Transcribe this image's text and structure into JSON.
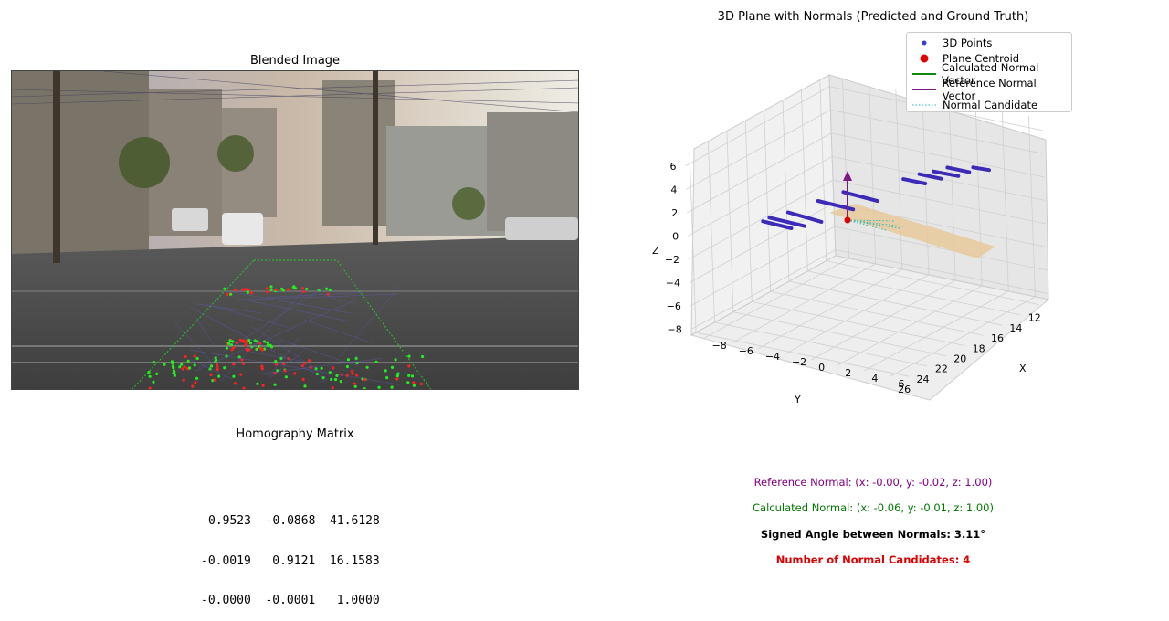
{
  "left_panel": {
    "title": "Blended Image",
    "homography_title": "Homography Matrix",
    "homography_rows": [
      "0.9523  -0.0868  41.6128",
      "-0.0019   0.9121  16.1583",
      "-0.0000  -0.0001   1.0000"
    ]
  },
  "right_panel": {
    "title": "3D Plane with Normals (Predicted and Ground Truth)",
    "legend": [
      {
        "label": "3D Points",
        "color": "#3b3bd8",
        "kind": "dot"
      },
      {
        "label": "Plane Centroid",
        "color": "#e00000",
        "kind": "big-dot"
      },
      {
        "label": "Calculated Normal Vector",
        "color": "#118811",
        "kind": "line"
      },
      {
        "label": "Reference Normal Vector",
        "color": "#7b1a82",
        "kind": "line"
      },
      {
        "label": "Normal Candidate",
        "color": "#29b8b8",
        "kind": "dotted"
      }
    ],
    "info": {
      "reference": "Reference Normal: (x: -0.00, y: -0.02, z: 1.00)",
      "calculated": "Calculated Normal: (x: -0.06, y: -0.01, z: 1.00)",
      "angle": "Signed Angle between Normals: 3.11°",
      "candidates": "Number of Normal Candidates: 4"
    },
    "colors": {
      "reference": "#800080",
      "calculated": "#007700",
      "candidates": "#dd0000"
    }
  },
  "chart_data": {
    "type": "scatter",
    "title": "3D Plane with Normals (Predicted and Ground Truth)",
    "xlabel": "X",
    "ylabel": "Y",
    "zlabel": "Z",
    "x_ticks": [
      -8,
      -6,
      -4,
      -2,
      0,
      2,
      4,
      6
    ],
    "y_ticks": [
      12,
      14,
      16,
      18,
      20,
      22,
      24,
      26
    ],
    "z_ticks": [
      -8,
      -6,
      -4,
      -2,
      0,
      2,
      4,
      6
    ],
    "xlim": [
      -9,
      7
    ],
    "ylim": [
      11,
      26.5
    ],
    "zlim": [
      -8.5,
      7
    ],
    "grid": true,
    "legend_position": "top-right",
    "plane": {
      "x_range": [
        -4,
        4
      ],
      "y_range": [
        12,
        26
      ],
      "z": 2
    },
    "centroid": {
      "x": 0,
      "y": 15,
      "z": 2.1
    },
    "reference_normal": {
      "x": -0.0,
      "y": -0.02,
      "z": 1.0
    },
    "calculated_normal": {
      "x": -0.06,
      "y": -0.01,
      "z": 1.0
    },
    "num_normal_candidates": 4,
    "point_strokes": [
      {
        "x": [
          2.5,
          4.0
        ],
        "y": [
          12.2,
          12.6
        ],
        "z": [
          2.3,
          2.6
        ]
      },
      {
        "x": [
          1.0,
          3.0
        ],
        "y": [
          12.8,
          13.3
        ],
        "z": [
          2.2,
          2.5
        ]
      },
      {
        "x": [
          0.5,
          2.8
        ],
        "y": [
          13.6,
          14.2
        ],
        "z": [
          2.1,
          2.5
        ]
      },
      {
        "x": [
          0.0,
          2.0
        ],
        "y": [
          14.4,
          14.9
        ],
        "z": [
          2.1,
          2.4
        ]
      },
      {
        "x": [
          -0.5,
          1.5
        ],
        "y": [
          15.4,
          15.9
        ],
        "z": [
          2.0,
          2.3
        ]
      },
      {
        "x": [
          -2.5,
          0.5
        ],
        "y": [
          19.0,
          19.6
        ],
        "z": [
          2.0,
          2.2
        ]
      },
      {
        "x": [
          -3.0,
          0.0
        ],
        "y": [
          21.0,
          21.5
        ],
        "z": [
          2.0,
          2.2
        ]
      },
      {
        "x": [
          -3.5,
          -0.5
        ],
        "y": [
          23.5,
          24.2
        ],
        "z": [
          2.0,
          2.2
        ]
      },
      {
        "x": [
          -4.0,
          -1.0
        ],
        "y": [
          24.8,
          25.3
        ],
        "z": [
          2.0,
          2.2
        ]
      },
      {
        "x": [
          -4.0,
          -1.5
        ],
        "y": [
          25.5,
          26.0
        ],
        "z": [
          2.0,
          2.2
        ]
      }
    ]
  }
}
